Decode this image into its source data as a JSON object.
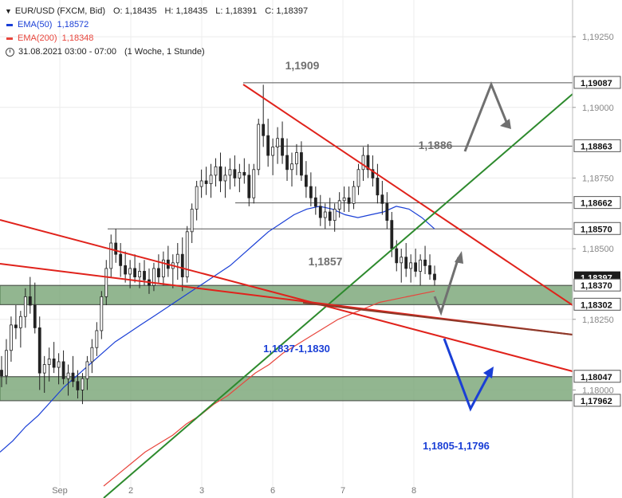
{
  "legend": {
    "symbol": "EUR/USD (FXCM, Bid)",
    "o_label": "O:",
    "o": "1,18435",
    "h_label": "H:",
    "h": "1,18435",
    "l_label": "L:",
    "l": "1,18391",
    "c_label": "C:",
    "c": "1,18397",
    "ema50_label": "EMA(50)",
    "ema50_value": "1,18572",
    "ema50_color": "#1a3fd6",
    "ema200_label": "EMA(200)",
    "ema200_value": "1,18348",
    "ema200_color": "#e8453c",
    "time_range": "31.08.2021 03:00 - 07:00",
    "interval": "(1 Woche, 1 Stunde)"
  },
  "chart_data": {
    "type": "candlestick",
    "x_ticks": [
      "Sep",
      "2",
      "3",
      "6",
      "7",
      "8"
    ],
    "y_ticks": [
      1.1925,
      1.19,
      1.1875,
      1.185,
      1.1825,
      1.18
    ],
    "y_tick_labels": [
      "1,19250",
      "1,19000",
      "1,18750",
      "1,18500",
      "1,18250",
      "1,18000"
    ],
    "ylim": [
      1.1766,
      1.1938
    ],
    "grid": true,
    "price_marker": {
      "value": 1.18397,
      "label": "1,18397"
    },
    "levels": [
      {
        "value": 1.19087,
        "label": "1,19087"
      },
      {
        "value": 1.18863,
        "label": "1,18863"
      },
      {
        "value": 1.18662,
        "label": "1,18662"
      },
      {
        "value": 1.1857,
        "label": "1,18570"
      },
      {
        "value": 1.1837,
        "label": "1,18370"
      },
      {
        "value": 1.18302,
        "label": "1,18302"
      },
      {
        "value": 1.18047,
        "label": "1,18047"
      },
      {
        "value": 1.17962,
        "label": "1,17962"
      }
    ],
    "zones": [
      {
        "low": 1.18302,
        "high": 1.1837,
        "label": "1,1837-1,1830",
        "color": "#7fa97c"
      },
      {
        "low": 1.17962,
        "high": 1.18047,
        "label": "1,1805-1,1796",
        "color": "#7fa97c"
      }
    ],
    "annotations": [
      "1,1909",
      "1,1886",
      "1,1857"
    ],
    "ema50": [
      1.1778,
      1.1782,
      1.1787,
      1.1791,
      1.1796,
      1.1801,
      1.1805,
      1.1809,
      1.1813,
      1.1817,
      1.182,
      1.1823,
      1.1826,
      1.1829,
      1.1832,
      1.1835,
      1.1838,
      1.1841,
      1.1844,
      1.1848,
      1.1852,
      1.1856,
      1.1859,
      1.1862,
      1.1864,
      1.1865,
      1.1864,
      1.1862,
      1.1861,
      1.1862,
      1.1863,
      1.1865,
      1.1864,
      1.1861,
      1.1857
    ],
    "ema200": [
      1.1766,
      1.177,
      1.1774,
      1.1778,
      1.1781,
      1.1784,
      1.1788,
      1.1791,
      1.1795,
      1.1798,
      1.1802,
      1.1806,
      1.1809,
      1.1813,
      1.1816,
      1.1819,
      1.1822,
      1.1825,
      1.1827,
      1.1829,
      1.1831,
      1.1832,
      1.1833,
      1.1834,
      1.1835
    ],
    "candles": [
      [
        1.1807,
        1.1812,
        1.1801,
        1.1805
      ],
      [
        1.1805,
        1.1818,
        1.1802,
        1.1814
      ],
      [
        1.1814,
        1.1826,
        1.181,
        1.1823
      ],
      [
        1.1823,
        1.183,
        1.1818,
        1.1822
      ],
      [
        1.1822,
        1.1828,
        1.1815,
        1.1826
      ],
      [
        1.1826,
        1.1836,
        1.1822,
        1.1833
      ],
      [
        1.1833,
        1.184,
        1.1827,
        1.183
      ],
      [
        1.183,
        1.1838,
        1.182,
        1.1822
      ],
      [
        1.1822,
        1.1826,
        1.18,
        1.1806
      ],
      [
        1.1806,
        1.1812,
        1.1799,
        1.1809
      ],
      [
        1.1809,
        1.1815,
        1.1803,
        1.1811
      ],
      [
        1.1811,
        1.1817,
        1.1806,
        1.1808
      ],
      [
        1.1808,
        1.1813,
        1.1802,
        1.181
      ],
      [
        1.181,
        1.1814,
        1.1802,
        1.1804
      ],
      [
        1.1804,
        1.1809,
        1.1798,
        1.1806
      ],
      [
        1.1806,
        1.1812,
        1.1801,
        1.1803
      ],
      [
        1.1803,
        1.1807,
        1.1797,
        1.18
      ],
      [
        1.18,
        1.1806,
        1.1795,
        1.1804
      ],
      [
        1.1804,
        1.1812,
        1.18,
        1.181
      ],
      [
        1.181,
        1.1818,
        1.1806,
        1.1815
      ],
      [
        1.1815,
        1.1824,
        1.1812,
        1.1821
      ],
      [
        1.1821,
        1.1835,
        1.1818,
        1.1833
      ],
      [
        1.1833,
        1.1846,
        1.183,
        1.1843
      ],
      [
        1.1843,
        1.1855,
        1.184,
        1.1852
      ],
      [
        1.1852,
        1.1857,
        1.1845,
        1.1848
      ],
      [
        1.1848,
        1.1852,
        1.184,
        1.1844
      ],
      [
        1.1844,
        1.1849,
        1.1838,
        1.1841
      ],
      [
        1.1841,
        1.1846,
        1.1836,
        1.1843
      ],
      [
        1.1843,
        1.1848,
        1.1838,
        1.184
      ],
      [
        1.184,
        1.1845,
        1.1836,
        1.1842
      ],
      [
        1.1842,
        1.1846,
        1.1837,
        1.1839
      ],
      [
        1.1839,
        1.1843,
        1.1834,
        1.1837
      ],
      [
        1.1837,
        1.1845,
        1.1835,
        1.1843
      ],
      [
        1.1843,
        1.1848,
        1.1838,
        1.184
      ],
      [
        1.184,
        1.1849,
        1.1837,
        1.1846
      ],
      [
        1.1846,
        1.1851,
        1.184,
        1.1843
      ],
      [
        1.1843,
        1.1848,
        1.1836,
        1.1845
      ],
      [
        1.1845,
        1.1852,
        1.1839,
        1.1848
      ],
      [
        1.1848,
        1.1854,
        1.1835,
        1.184
      ],
      [
        1.184,
        1.1858,
        1.1838,
        1.1856
      ],
      [
        1.1856,
        1.1866,
        1.1852,
        1.1864
      ],
      [
        1.1864,
        1.1874,
        1.186,
        1.1872
      ],
      [
        1.1872,
        1.1878,
        1.1868,
        1.1874
      ],
      [
        1.1874,
        1.1879,
        1.1869,
        1.1873
      ],
      [
        1.1873,
        1.188,
        1.1868,
        1.1876
      ],
      [
        1.1876,
        1.1882,
        1.1872,
        1.1879
      ],
      [
        1.1879,
        1.1884,
        1.187,
        1.1874
      ],
      [
        1.1874,
        1.1879,
        1.1868,
        1.1876
      ],
      [
        1.1876,
        1.1882,
        1.1871,
        1.1878
      ],
      [
        1.1878,
        1.1883,
        1.1872,
        1.1875
      ],
      [
        1.1875,
        1.188,
        1.187,
        1.1877
      ],
      [
        1.1877,
        1.1882,
        1.1873,
        1.1876
      ],
      [
        1.1876,
        1.188,
        1.1865,
        1.1868
      ],
      [
        1.1868,
        1.188,
        1.1866,
        1.1878
      ],
      [
        1.1878,
        1.1896,
        1.1876,
        1.1894
      ],
      [
        1.1894,
        1.1908,
        1.1886,
        1.189
      ],
      [
        1.189,
        1.1896,
        1.1879,
        1.1883
      ],
      [
        1.1883,
        1.1889,
        1.1876,
        1.1886
      ],
      [
        1.1886,
        1.1893,
        1.188,
        1.1889
      ],
      [
        1.1889,
        1.1895,
        1.188,
        1.1883
      ],
      [
        1.1883,
        1.1889,
        1.1874,
        1.1878
      ],
      [
        1.1878,
        1.1884,
        1.1872,
        1.188
      ],
      [
        1.188,
        1.1887,
        1.1876,
        1.1884
      ],
      [
        1.1884,
        1.1888,
        1.1874,
        1.1876
      ],
      [
        1.1876,
        1.1881,
        1.1868,
        1.1872
      ],
      [
        1.1872,
        1.1877,
        1.1865,
        1.1868
      ],
      [
        1.1868,
        1.1872,
        1.1862,
        1.1865
      ],
      [
        1.1865,
        1.1869,
        1.1858,
        1.1861
      ],
      [
        1.1861,
        1.1866,
        1.1857,
        1.1863
      ],
      [
        1.1863,
        1.1868,
        1.1858,
        1.186
      ],
      [
        1.186,
        1.1866,
        1.1856,
        1.1864
      ],
      [
        1.1864,
        1.187,
        1.1861,
        1.1867
      ],
      [
        1.1867,
        1.1872,
        1.1863,
        1.1868
      ],
      [
        1.1868,
        1.1872,
        1.1863,
        1.1866
      ],
      [
        1.1866,
        1.1874,
        1.1864,
        1.1872
      ],
      [
        1.1872,
        1.188,
        1.1869,
        1.1878
      ],
      [
        1.1878,
        1.1886,
        1.1874,
        1.1883
      ],
      [
        1.1883,
        1.1887,
        1.1875,
        1.1878
      ],
      [
        1.1878,
        1.1883,
        1.1872,
        1.1875
      ],
      [
        1.1875,
        1.188,
        1.1866,
        1.1869
      ],
      [
        1.1869,
        1.1874,
        1.1862,
        1.1866
      ],
      [
        1.1866,
        1.187,
        1.1857,
        1.186
      ],
      [
        1.186,
        1.1863,
        1.1847,
        1.185
      ],
      [
        1.185,
        1.1853,
        1.1842,
        1.1845
      ],
      [
        1.1845,
        1.185,
        1.1838,
        1.1847
      ],
      [
        1.1847,
        1.1852,
        1.184,
        1.1843
      ],
      [
        1.1843,
        1.1848,
        1.1838,
        1.1845
      ],
      [
        1.1845,
        1.185,
        1.184,
        1.1842
      ],
      [
        1.1842,
        1.1848,
        1.1837,
        1.1846
      ],
      [
        1.1846,
        1.1851,
        1.1841,
        1.1844
      ],
      [
        1.1844,
        1.1848,
        1.1839,
        1.1841
      ],
      [
        1.1841,
        1.1844,
        1.1837,
        1.1839
      ]
    ]
  }
}
